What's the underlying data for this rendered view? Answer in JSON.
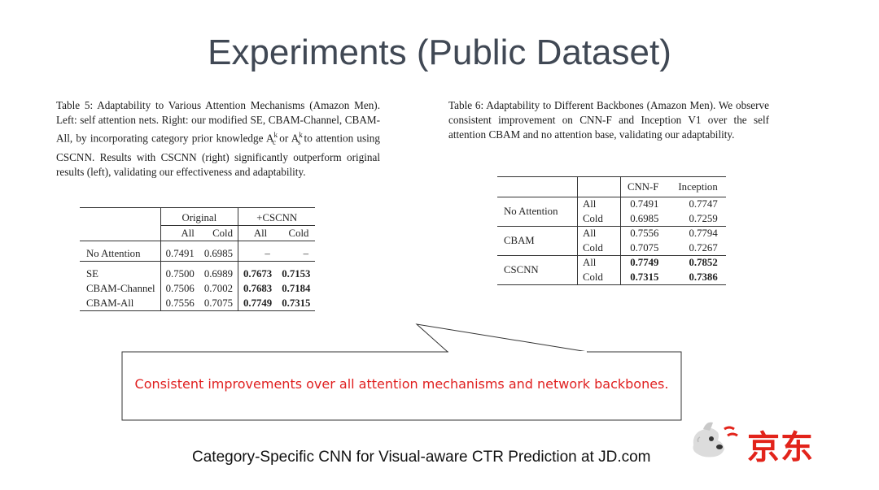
{
  "title": "Experiments (Public Dataset)",
  "table5": {
    "caption": "Table 5: Adaptability to Various Attention Mechanisms (Amazon Men). Left: self attention nets. Right: our modified SE, CBAM-Channel, CBAM-All, by incorporating category prior knowledge A",
    "caption_a": "c",
    "caption_mid": " or A",
    "caption_b": "s",
    "caption_end": " to attention using CSCNN. Results with CSCNN (right) significantly outperform original results (left), validating our effectiveness and adaptability.",
    "sup": "k",
    "group_original": "Original",
    "group_cscnn": "+CSCNN",
    "col_all": "All",
    "col_cold": "Cold",
    "rows": [
      {
        "name": "No Attention",
        "o_all": "0.7491",
        "o_cold": "0.6985",
        "c_all": "–",
        "c_cold": "–"
      },
      {
        "name": "SE",
        "o_all": "0.7500",
        "o_cold": "0.6989",
        "c_all": "0.7673",
        "c_cold": "0.7153"
      },
      {
        "name": "CBAM-Channel",
        "o_all": "0.7506",
        "o_cold": "0.7002",
        "c_all": "0.7683",
        "c_cold": "0.7184"
      },
      {
        "name": "CBAM-All",
        "o_all": "0.7556",
        "o_cold": "0.7075",
        "c_all": "0.7749",
        "c_cold": "0.7315"
      }
    ]
  },
  "table6": {
    "caption": "Table 6: Adaptability to Different Backbones (Amazon Men). We observe consistent improvement on CNN-F and Inception V1 over the self attention CBAM and no attention base, validating our adaptability.",
    "col1": "CNN-F",
    "col2": "Inception",
    "sub_all": "All",
    "sub_cold": "Cold",
    "rows": [
      {
        "name": "No Attention",
        "all_1": "0.7491",
        "all_2": "0.7747",
        "cold_1": "0.6985",
        "cold_2": "0.7259"
      },
      {
        "name": "CBAM",
        "all_1": "0.7556",
        "all_2": "0.7794",
        "cold_1": "0.7075",
        "cold_2": "0.7267"
      },
      {
        "name": "CSCNN",
        "all_1": "0.7749",
        "all_2": "0.7852",
        "cold_1": "0.7315",
        "cold_2": "0.7386"
      }
    ]
  },
  "callout": "Consistent improvements over all attention mechanisms and network backbones.",
  "footer": "Category-Specific CNN for Visual-aware CTR Prediction at JD.com",
  "logo": {
    "text": "京东",
    "icon": "jd-dog-mascot-icon",
    "color": "#e2231a"
  }
}
